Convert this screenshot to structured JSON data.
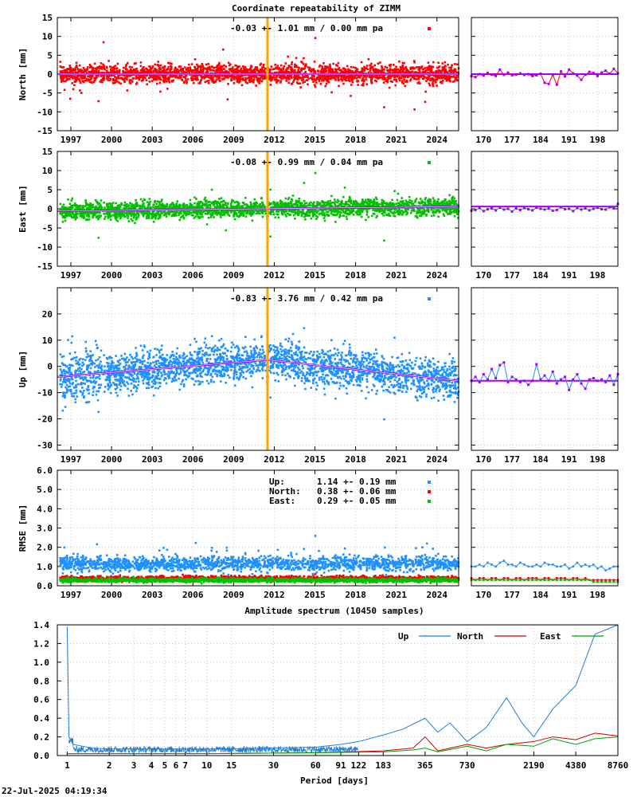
{
  "title": "Coordinate repeatability of ZIMM",
  "timestamp": "22-Jul-2025 04:19:34",
  "colors": {
    "north": "#ff0000",
    "east": "#00c000",
    "up": "#1e90ff",
    "model": "#a000ff",
    "marker": "#ffa500",
    "grid": "#bbbbbb",
    "spectrum_up": "#1e7fd6",
    "spectrum_north": "#cc0000",
    "spectrum_east": "#00a000"
  },
  "chart_data": [
    {
      "id": "north",
      "type": "scatter",
      "ylabel": "North [mm]",
      "ylim": [
        -15,
        15
      ],
      "yticks": [
        "-15",
        "-10",
        "-5",
        "0",
        "5",
        "10",
        "15"
      ],
      "xlim": [
        1996.0,
        2025.6
      ],
      "xticks": [
        "1997",
        "2000",
        "2003",
        "2006",
        "2009",
        "2012",
        "2015",
        "2018",
        "2021",
        "2024"
      ],
      "stats": "-0.03 +- 1.01 mm /  0.00 mm pa",
      "marker_epoch": 2011.5,
      "trend": [
        [
          1996.0,
          0.0
        ],
        [
          2025.6,
          0.0
        ]
      ],
      "recent": {
        "xlim": [
          167,
          203
        ],
        "xticks": [
          "170",
          "177",
          "184",
          "191",
          "198"
        ],
        "values": [
          -0.5,
          -0.8,
          0.0,
          -0.4,
          0.3,
          -0.1,
          -0.5,
          1.2,
          -0.2,
          0.4,
          -0.3,
          -0.1,
          0.2,
          -0.2,
          0.0,
          -0.5,
          -0.3,
          0.1,
          -2.3,
          -2.6,
          -0.2,
          -2.8,
          0.7,
          -0.6,
          1.2,
          0.2,
          -0.4,
          -1.5,
          -0.1,
          0.6,
          0.3,
          -0.5,
          0.4,
          0.9,
          0.1,
          1.4,
          0.2
        ]
      }
    },
    {
      "id": "east",
      "type": "scatter",
      "ylabel": "East [mm]",
      "ylim": [
        -15,
        15
      ],
      "yticks": [
        "-15",
        "-10",
        "-5",
        "0",
        "5",
        "10",
        "15"
      ],
      "xlim": [
        1996.0,
        2025.6
      ],
      "xticks": [
        "1997",
        "2000",
        "2003",
        "2006",
        "2009",
        "2012",
        "2015",
        "2018",
        "2021",
        "2024"
      ],
      "stats": "-0.08 +- 0.99 mm /  0.04 mm pa",
      "marker_epoch": 2011.5,
      "trend": [
        [
          1996.0,
          -0.6
        ],
        [
          2025.6,
          0.6
        ]
      ],
      "recent": {
        "xlim": [
          167,
          203
        ],
        "xticks": [
          "170",
          "177",
          "184",
          "191",
          "198"
        ],
        "values": [
          -0.5,
          -0.3,
          0.2,
          -0.6,
          -0.1,
          0.1,
          -0.4,
          0.3,
          -0.2,
          0.0,
          -0.7,
          0.1,
          -0.3,
          0.2,
          -0.1,
          -0.4,
          0.3,
          0.0,
          -0.2,
          0.1,
          -0.5,
          -0.3,
          0.4,
          -0.1,
          0.0,
          -0.6,
          0.2,
          -0.2,
          0.1,
          -0.4,
          0.0,
          0.3,
          -0.1,
          -0.2,
          0.4,
          0.1,
          1.3
        ]
      }
    },
    {
      "id": "up",
      "type": "scatter",
      "ylabel": "Up [mm]",
      "ylim": [
        -32,
        30
      ],
      "yticks": [
        "-30",
        "-20",
        "-10",
        "0",
        "10",
        "20"
      ],
      "xlim": [
        1996.0,
        2025.6
      ],
      "xticks": [
        "1997",
        "2000",
        "2003",
        "2006",
        "2009",
        "2012",
        "2015",
        "2018",
        "2021",
        "2024"
      ],
      "stats": "-0.83 +- 3.76 mm /  0.42 mm pa",
      "marker_epoch": 2011.5,
      "trend": [
        [
          1996.0,
          -4.0
        ],
        [
          2011.5,
          2.5
        ],
        [
          2025.6,
          -5.5
        ]
      ],
      "recent": {
        "xlim": [
          167,
          203
        ],
        "xticks": [
          "170",
          "177",
          "184",
          "191",
          "198"
        ],
        "values": [
          -5.5,
          -4.0,
          -6.0,
          -3.0,
          -5.0,
          -1.0,
          -4.5,
          0.5,
          1.5,
          -6.0,
          -4.0,
          -5.0,
          -6.0,
          -5.5,
          -7.0,
          -5.5,
          0.8,
          -5.0,
          -3.5,
          -5.5,
          -2.0,
          -6.5,
          -5.0,
          -4.0,
          -9.0,
          -5.0,
          -3.0,
          -6.5,
          -8.5,
          -5.0,
          -4.5,
          -5.5,
          -5.0,
          -6.0,
          -3.5,
          -7.0,
          -3.0
        ]
      }
    },
    {
      "id": "rmse",
      "type": "scatter",
      "ylabel": "RMSE [mm]",
      "ylim": [
        0.0,
        6.0
      ],
      "yticks": [
        "0.0",
        "1.0",
        "2.0",
        "3.0",
        "4.0",
        "5.0",
        "6.0"
      ],
      "xlim": [
        1996.0,
        2025.6
      ],
      "xticks": [
        "1997",
        "2000",
        "2003",
        "2006",
        "2009",
        "2012",
        "2015",
        "2018",
        "2021",
        "2024"
      ],
      "legend": [
        {
          "name": "Up:",
          "text": "1.14 +- 0.19 mm",
          "color": "#1e90ff"
        },
        {
          "name": "North:",
          "text": "0.38 +- 0.06 mm",
          "color": "#ff0000"
        },
        {
          "name": "East:",
          "text": "0.29 +- 0.05 mm",
          "color": "#00c000"
        }
      ],
      "recent": {
        "xlim": [
          167,
          203
        ],
        "xticks": [
          "170",
          "177",
          "184",
          "191",
          "198"
        ],
        "series": [
          {
            "name": "Up",
            "values": [
              1.0,
              1.0,
              1.1,
              1.0,
              1.2,
              1.1,
              1.0,
              1.2,
              1.3,
              1.1,
              1.1,
              1.0,
              1.2,
              1.1,
              1.0,
              1.0,
              1.1,
              1.0,
              1.2,
              1.1,
              1.1,
              1.0,
              1.0,
              1.1,
              0.9,
              1.0,
              1.2,
              1.0,
              1.1,
              1.0,
              1.1,
              0.9,
              1.0,
              0.8,
              0.9,
              1.0,
              1.0
            ]
          },
          {
            "name": "North",
            "values": [
              0.4,
              0.3,
              0.4,
              0.4,
              0.3,
              0.4,
              0.4,
              0.3,
              0.4,
              0.4,
              0.3,
              0.4,
              0.4,
              0.3,
              0.4,
              0.4,
              0.4,
              0.3,
              0.4,
              0.4,
              0.3,
              0.4,
              0.4,
              0.4,
              0.3,
              0.4,
              0.4,
              0.3,
              0.4,
              0.3,
              0.3,
              0.3,
              0.3,
              0.3,
              0.3,
              0.3,
              0.3
            ]
          },
          {
            "name": "East",
            "values": [
              0.3,
              0.3,
              0.3,
              0.3,
              0.3,
              0.3,
              0.3,
              0.3,
              0.3,
              0.3,
              0.3,
              0.3,
              0.3,
              0.3,
              0.3,
              0.3,
              0.3,
              0.3,
              0.3,
              0.3,
              0.3,
              0.3,
              0.3,
              0.3,
              0.3,
              0.3,
              0.3,
              0.3,
              0.3,
              0.3,
              0.2,
              0.2,
              0.2,
              0.2,
              0.2,
              0.2,
              0.2
            ]
          }
        ]
      }
    },
    {
      "id": "spectrum",
      "type": "line",
      "title": "Amplitude spectrum (10450 samples)",
      "xlabel": "Period [days]",
      "xscale": "log",
      "xlim": [
        0.85,
        8760
      ],
      "ylim": [
        0.0,
        1.4
      ],
      "yticks": [
        "0.0",
        "0.2",
        "0.4",
        "0.6",
        "0.8",
        "1.0",
        "1.2",
        "1.4"
      ],
      "xticks": [
        "1",
        "2",
        "3",
        "4",
        "5",
        "6",
        "7",
        "10",
        "15",
        "30",
        "60",
        "91",
        "122",
        "183",
        "365",
        "730",
        "2190",
        "4380",
        "8760"
      ],
      "legend_position": "top-right",
      "series": [
        {
          "name": "Up",
          "points": [
            [
              1.0,
              1.38
            ],
            [
              1.03,
              0.2
            ],
            [
              1.1,
              0.12
            ],
            [
              1.5,
              0.08
            ],
            [
              2,
              0.07
            ],
            [
              4,
              0.07
            ],
            [
              10,
              0.07
            ],
            [
              30,
              0.08
            ],
            [
              60,
              0.09
            ],
            [
              91,
              0.12
            ],
            [
              122,
              0.15
            ],
            [
              183,
              0.22
            ],
            [
              250,
              0.28
            ],
            [
              365,
              0.4
            ],
            [
              450,
              0.25
            ],
            [
              550,
              0.35
            ],
            [
              730,
              0.15
            ],
            [
              1000,
              0.3
            ],
            [
              1400,
              0.62
            ],
            [
              1800,
              0.35
            ],
            [
              2190,
              0.2
            ],
            [
              3000,
              0.5
            ],
            [
              4380,
              0.75
            ],
            [
              6000,
              1.3
            ],
            [
              8760,
              1.4
            ]
          ]
        },
        {
          "name": "North",
          "points": [
            [
              1,
              0.02
            ],
            [
              10,
              0.02
            ],
            [
              60,
              0.03
            ],
            [
              183,
              0.05
            ],
            [
              300,
              0.08
            ],
            [
              365,
              0.2
            ],
            [
              450,
              0.05
            ],
            [
              730,
              0.12
            ],
            [
              1000,
              0.08
            ],
            [
              1400,
              0.12
            ],
            [
              2190,
              0.15
            ],
            [
              3000,
              0.2
            ],
            [
              4380,
              0.17
            ],
            [
              6000,
              0.24
            ],
            [
              8760,
              0.21
            ]
          ]
        },
        {
          "name": "East",
          "points": [
            [
              1,
              0.02
            ],
            [
              10,
              0.02
            ],
            [
              60,
              0.03
            ],
            [
              183,
              0.04
            ],
            [
              300,
              0.06
            ],
            [
              365,
              0.08
            ],
            [
              450,
              0.04
            ],
            [
              730,
              0.1
            ],
            [
              1000,
              0.05
            ],
            [
              1400,
              0.12
            ],
            [
              2190,
              0.1
            ],
            [
              3000,
              0.18
            ],
            [
              4380,
              0.12
            ],
            [
              6000,
              0.18
            ],
            [
              8760,
              0.2
            ]
          ]
        }
      ]
    }
  ]
}
